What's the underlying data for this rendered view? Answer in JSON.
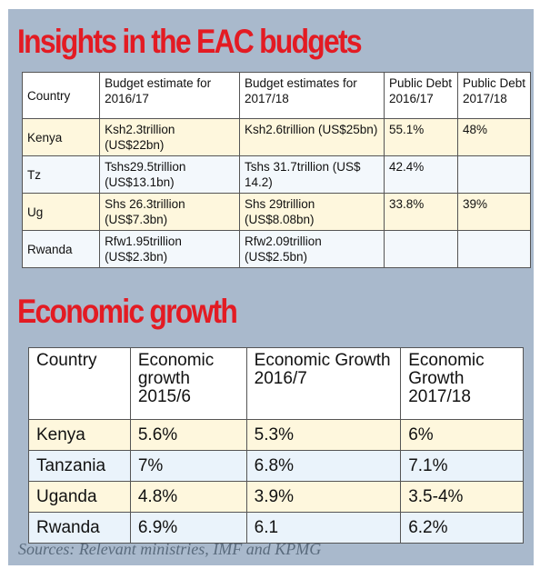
{
  "budgets": {
    "title": "Insights in the EAC budgets",
    "headers": [
      "Country",
      "Budget estimate for 2016/17",
      "Budget estimates for 2017/18",
      "Public Debt 2016/17",
      "Public Debt 2017/18"
    ],
    "rows": [
      [
        "Kenya",
        "Ksh2.3trillion (US$22bn)",
        "Ksh2.6trillion (US$25bn)",
        "55.1%",
        "48%"
      ],
      [
        "Tz",
        "Tshs29.5trillion (US$13.1bn)",
        "Tshs 31.7trillion (US$ 14.2)",
        "42.4%",
        ""
      ],
      [
        "Ug",
        "Shs 26.3trillion (US$7.3bn)",
        "Shs 29trillion (US$8.08bn)",
        "33.8%",
        "39%"
      ],
      [
        "Rwanda",
        "Rfw1.95trillion (US$2.3bn)",
        "Rfw2.09trillion (US$2.5bn)",
        "",
        ""
      ]
    ]
  },
  "growth": {
    "title": "Economic growth",
    "headers": [
      "Country",
      "Economic growth 2015/6",
      "Economic Growth 2016/7",
      "Economic Growth 2017/18"
    ],
    "rows": [
      [
        "Kenya",
        "5.6%",
        "5.3%",
        "6%"
      ],
      [
        "Tanzania",
        "7%",
        "6.8%",
        "7.1%"
      ],
      [
        "Uganda",
        "4.8%",
        "3.9%",
        "3.5-4%"
      ],
      [
        "Rwanda",
        "6.9%",
        "6.1",
        "6.2%"
      ]
    ]
  },
  "sources": "Sources: Relevant ministries, IMF and KPMG",
  "colors": {
    "heading": "#e31b23",
    "panel": "#a9b9cc",
    "row_odd": "#fef7dd",
    "row_even": "#eaf3fb"
  }
}
